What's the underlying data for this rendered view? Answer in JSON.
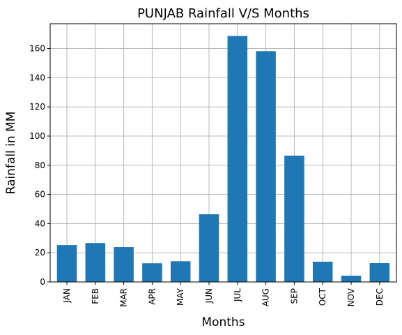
{
  "chart_data": {
    "type": "bar",
    "title": "PUNJAB Rainfall V/S Months",
    "xlabel": "Months",
    "ylabel": "Rainfall in MM",
    "categories": [
      "JAN",
      "FEB",
      "MAR",
      "APR",
      "MAY",
      "JUN",
      "JUL",
      "AUG",
      "SEP",
      "OCT",
      "NOV",
      "DEC"
    ],
    "values": [
      25.3,
      26.7,
      23.9,
      12.8,
      14.2,
      46.4,
      168.6,
      158.2,
      86.6,
      13.9,
      4.3,
      12.9
    ],
    "ylim": [
      0,
      177
    ],
    "yticks": [
      0,
      20,
      40,
      60,
      80,
      100,
      120,
      140,
      160
    ],
    "grid": true,
    "legend": "none",
    "bar_color": "#1f77b4",
    "grid_color": "#b0b0b0"
  }
}
